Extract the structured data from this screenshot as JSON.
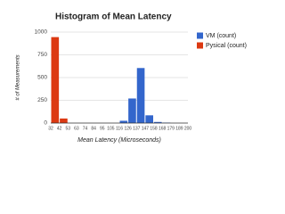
{
  "chart_data": {
    "type": "histogram",
    "title": "Histogram of Mean Latency",
    "x_label": "Mean Latency (Microseconds)",
    "y_label": "# of Measurements",
    "bins": [
      32,
      42,
      53,
      63,
      74,
      84,
      95,
      105,
      116,
      126,
      137,
      147,
      158,
      168,
      179,
      189,
      200
    ],
    "series": [
      {
        "name": "VM (count)",
        "color": "#3366cc",
        "values": [
          0,
          0,
          0,
          0,
          0,
          0,
          0,
          0,
          25,
          270,
          605,
          85,
          12,
          5,
          0,
          0
        ]
      },
      {
        "name": "Pysical (count)",
        "color": "#dc3912",
        "values": [
          945,
          50,
          0,
          0,
          0,
          0,
          0,
          0,
          0,
          0,
          0,
          0,
          0,
          0,
          0,
          0
        ]
      }
    ],
    "ylim": [
      0,
      1000
    ],
    "yticks": [
      0,
      250,
      500,
      750,
      1000
    ],
    "grid": true,
    "legend": "right"
  }
}
